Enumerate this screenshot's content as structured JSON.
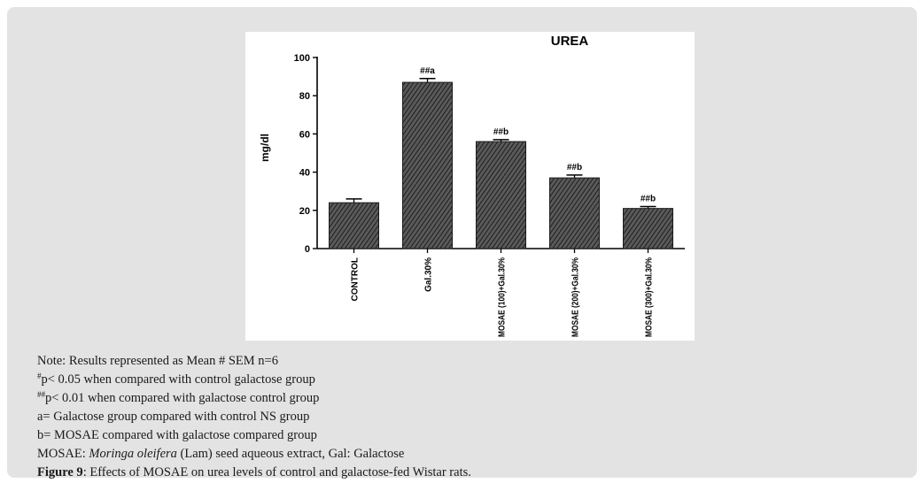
{
  "chart_data": {
    "type": "bar",
    "title": "UREA",
    "ylabel": "mg/dl",
    "xlabel": "",
    "ylim": [
      0,
      100
    ],
    "yticks": [
      "0",
      "20",
      "40",
      "60",
      "80",
      "100"
    ],
    "grid": false,
    "categories": [
      "CONTROL",
      "Gal.30%",
      "MOSAE (100)+Gal.30%",
      "MOSAE (200)+Gal.30%",
      "MOSAE (300)+Gal.30%"
    ],
    "values": [
      24,
      87,
      56,
      37,
      21
    ],
    "errors": [
      2,
      2,
      1,
      1.5,
      1
    ],
    "annotations": [
      "",
      "##a",
      "##b",
      "##b",
      "##b"
    ],
    "bar_fill": "hatched",
    "colors": {
      "bar": "#3a3a3a",
      "axis": "#000000"
    }
  },
  "notes": {
    "line1": "Note: Results represented as Mean # SEM n=6",
    "line2_sup": "#",
    "line2": "p< 0.05 when compared with control galactose group",
    "line3_sup": "##",
    "line3": "p< 0.01 when compared with galactose control group",
    "line4": "a= Galactose group compared with control NS group",
    "line5": "b= MOSAE compared with galactose compared group",
    "line6_prefix": "MOSAE: ",
    "line6_italic": "Moringa oleifera",
    "line6_suffix": " (Lam) seed aqueous extract, Gal: Galactose",
    "caption_label": "Figure 9",
    "caption_text": ": Effects of MOSAE on urea levels of control and galactose-fed Wistar rats."
  }
}
